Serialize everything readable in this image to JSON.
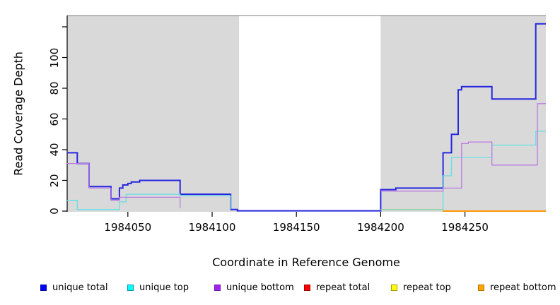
{
  "figure": {
    "background": "#FFFFFF",
    "plot_bg": "#FFFFFF"
  },
  "chart_data": {
    "type": "line",
    "subtype": "step-coverage",
    "title": "",
    "xlabel": "Coordinate in Reference Genome",
    "ylabel": "Read Coverage Depth",
    "xlim": [
      1984014,
      1984298
    ],
    "ylim": [
      0,
      127
    ],
    "grid": false,
    "legend_position": "bottom",
    "x_ticks": [
      1984050,
      1984100,
      1984150,
      1984200,
      1984250
    ],
    "x_tick_labels": [
      "1984050",
      "1984100",
      "1984150",
      "1984200",
      "1984250"
    ],
    "y_ticks": [
      0,
      20,
      40,
      60,
      80,
      100,
      120
    ],
    "y_tick_labels": [
      "0",
      "20",
      "40",
      "60",
      "80",
      "100",
      ""
    ],
    "shaded_regions": [
      {
        "x0": 1984014,
        "x1": 1984116,
        "color": "#D9D9D9"
      },
      {
        "x0": 1984200,
        "x1": 1984298,
        "color": "#D9D9D9"
      }
    ],
    "gap_top_border_color": "#808080",
    "axis_color": "#000000",
    "series": [
      {
        "name": "unique total",
        "color": "#0000FF",
        "line_color": "#2727DF",
        "width": 2,
        "points": [
          [
            1984014,
            38
          ],
          [
            1984020,
            31
          ],
          [
            1984027,
            16
          ],
          [
            1984040,
            8
          ],
          [
            1984045,
            15
          ],
          [
            1984047,
            17
          ],
          [
            1984050,
            18
          ],
          [
            1984052,
            19
          ],
          [
            1984057,
            20
          ],
          [
            1984081,
            11
          ],
          [
            1984111,
            1
          ],
          [
            1984115,
            0.2
          ],
          [
            1984200,
            14
          ],
          [
            1984209,
            15
          ],
          [
            1984237,
            38
          ],
          [
            1984242,
            50
          ],
          [
            1984246,
            79
          ],
          [
            1984248,
            81
          ],
          [
            1984266,
            73
          ],
          [
            1984292,
            122
          ],
          [
            1984298,
            122
          ]
        ]
      },
      {
        "name": "unique top",
        "color": "#00FFFF",
        "line_color": "#66DEE4",
        "width": 1.3,
        "points": [
          [
            1984014,
            7
          ],
          [
            1984020,
            1
          ],
          [
            1984045,
            6
          ],
          [
            1984049,
            11
          ],
          [
            1984081,
            10
          ],
          [
            1984111,
            1
          ],
          [
            1984115,
            null
          ],
          [
            1984200,
            1
          ],
          [
            1984237,
            23
          ],
          [
            1984242,
            35
          ],
          [
            1984266,
            43
          ],
          [
            1984292,
            52
          ],
          [
            1984298,
            52
          ]
        ]
      },
      {
        "name": "unique bottom",
        "color": "#A020F0",
        "line_color": "#BC7BE4",
        "width": 1.3,
        "points": [
          [
            1984014,
            31
          ],
          [
            1984027,
            15
          ],
          [
            1984040,
            7
          ],
          [
            1984045,
            9
          ],
          [
            1984081,
            2
          ],
          [
            1984115,
            null
          ],
          [
            1984200,
            13
          ],
          [
            1984237,
            15
          ],
          [
            1984248,
            44
          ],
          [
            1984252,
            45
          ],
          [
            1984266,
            30
          ],
          [
            1984293,
            70
          ],
          [
            1984298,
            70
          ]
        ]
      },
      {
        "name": "repeat total",
        "color": "#FF0000",
        "line_color": "#E03030",
        "width": 1.3,
        "points": [
          [
            1984014,
            0
          ],
          [
            1984115,
            null
          ],
          [
            1984237,
            0
          ],
          [
            1984298,
            0
          ]
        ]
      },
      {
        "name": "repeat top",
        "color": "#FFFF00",
        "line_color": "#8FD3A0",
        "width": 1.3,
        "points": [
          [
            1984014,
            0.8
          ],
          [
            1984115,
            null
          ],
          [
            1984200,
            1
          ],
          [
            1984237,
            0
          ],
          [
            1984298,
            0
          ]
        ]
      },
      {
        "name": "repeat bottom",
        "color": "#FFA500",
        "line_color": "#FF9505",
        "width": 2,
        "points": [
          [
            1984014,
            0
          ],
          [
            1984115,
            null
          ],
          [
            1984237,
            0
          ],
          [
            1984298,
            0
          ]
        ]
      }
    ]
  },
  "legend": {
    "items": [
      {
        "label": "unique total",
        "fill": "#0000FF",
        "border": "#0000A8"
      },
      {
        "label": "unique top",
        "fill": "#00FFFF",
        "border": "#009DA8"
      },
      {
        "label": "unique bottom",
        "fill": "#A020F0",
        "border": "#7818B0"
      },
      {
        "label": "repeat total",
        "fill": "#FF0000",
        "border": "#A80000"
      },
      {
        "label": "repeat top",
        "fill": "#FFFF00",
        "border": "#9C9C00"
      },
      {
        "label": "repeat bottom",
        "fill": "#FFA500",
        "border": "#B87400"
      }
    ]
  }
}
